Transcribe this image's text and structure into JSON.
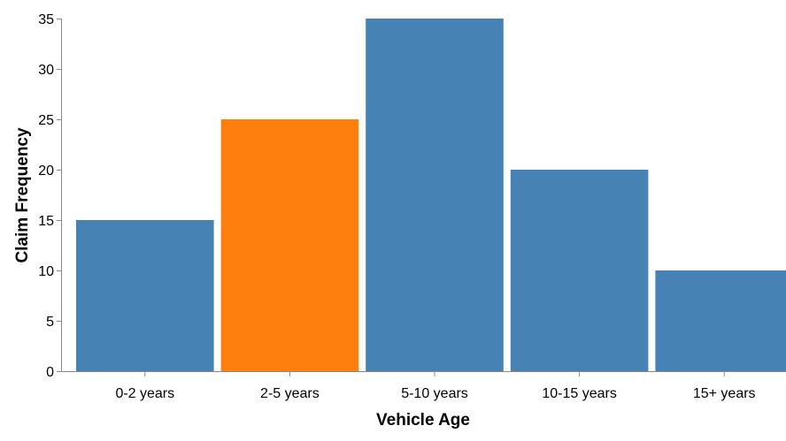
{
  "chart_data": {
    "type": "bar",
    "title": "",
    "xlabel": "Vehicle Age",
    "ylabel": "Claim Frequency",
    "categories": [
      "0-2 years",
      "2-5 years",
      "5-10 years",
      "10-15 years",
      "15+ years"
    ],
    "values": [
      15,
      25,
      35,
      20,
      10
    ],
    "ylim": [
      0,
      35
    ],
    "yticks": [
      0,
      5,
      10,
      15,
      20,
      25,
      30,
      35
    ],
    "grid": false,
    "highlight_category": "2-5 years",
    "colors": {
      "bar": "#4682b4",
      "highlight": "#ff7f0e",
      "axis": "#888888"
    }
  }
}
